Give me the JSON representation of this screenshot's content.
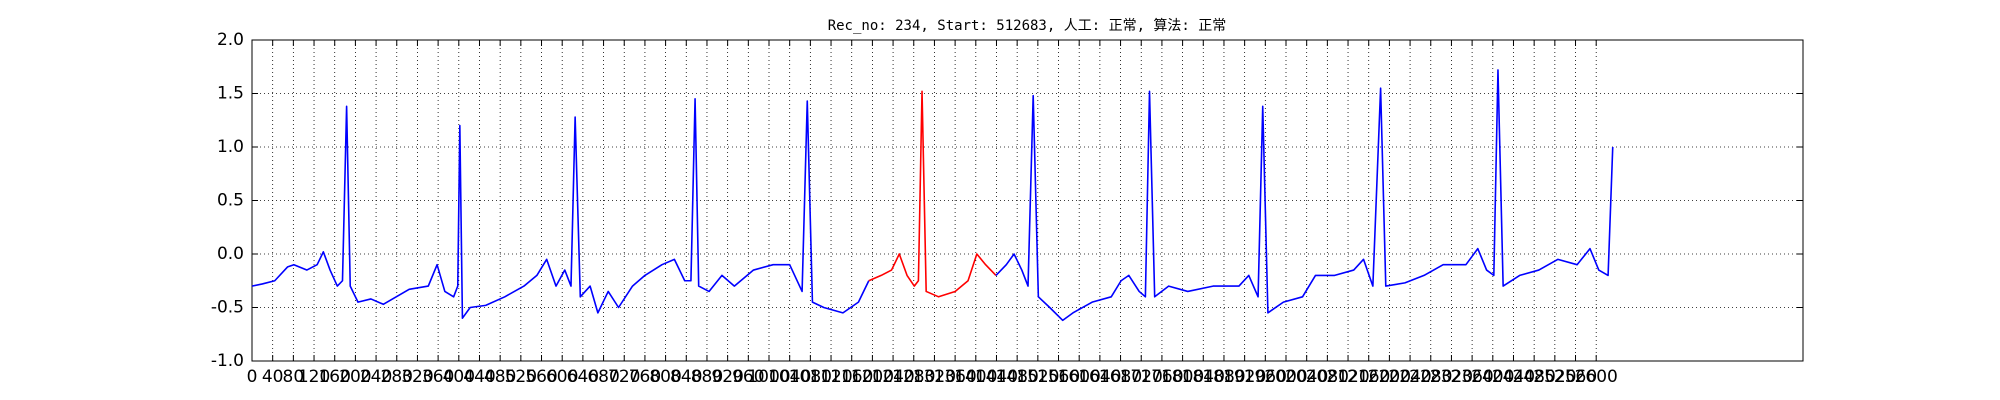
{
  "chart_data": {
    "type": "line",
    "title": "Rec_no: 234, Start: 512683, 人工: 正常, 算法: 正常",
    "xlim": [
      0,
      3000
    ],
    "xticks": [
      0,
      40,
      80,
      120,
      160,
      200,
      240,
      280,
      320,
      360,
      400,
      440,
      480,
      520,
      560,
      600,
      640,
      680,
      720,
      760,
      800,
      840,
      880,
      920,
      960,
      1000,
      1040,
      1080,
      1120,
      1160,
      1200,
      1240,
      1280,
      1320,
      1360,
      1400,
      1440,
      1480,
      1520,
      1560,
      1600,
      1640,
      1680,
      1720,
      1760,
      1800,
      1840,
      1880,
      1920,
      1960,
      2000,
      2040,
      2080,
      2120,
      2160,
      2200,
      2240,
      2280,
      2320,
      2360,
      2400,
      2440,
      2480,
      2520,
      2560,
      2600
    ],
    "ylim": [
      -1,
      2
    ],
    "yticks": [
      {
        "value": -1,
        "label": "-1.0"
      },
      {
        "value": -0.5,
        "label": "-0.5"
      },
      {
        "value": 0,
        "label": "0.0"
      },
      {
        "value": 0.5,
        "label": "0.5"
      },
      {
        "value": 1,
        "label": "1.0"
      },
      {
        "value": 1.5,
        "label": "1.5"
      },
      {
        "value": 2,
        "label": "2.0"
      }
    ],
    "grid": true,
    "series": [
      {
        "color": "#0000ff",
        "x": [
          0,
          20,
          44,
          69,
          81,
          106,
          126,
          138,
          151,
          165,
          175,
          183,
          190,
          205,
          230,
          254,
          279,
          304,
          341,
          358,
          373,
          390,
          398,
          402,
          407,
          422,
          452,
          489,
          526,
          551,
          570,
          588,
          605,
          617,
          625,
          635,
          654,
          669,
          689,
          709,
          736,
          760,
          793,
          817,
          837,
          849,
          857,
          864,
          884,
          909,
          933,
          970,
          1008,
          1040,
          1064,
          1074,
          1084,
          1106,
          1143,
          1173,
          1193
        ],
        "values": [
          -0.3,
          -0.28,
          -0.25,
          -0.12,
          -0.1,
          -0.15,
          -0.1,
          0.02,
          -0.15,
          -0.3,
          -0.25,
          1.38,
          -0.3,
          -0.45,
          -0.42,
          -0.47,
          -0.4,
          -0.33,
          -0.3,
          -0.1,
          -0.35,
          -0.4,
          -0.3,
          1.2,
          -0.6,
          -0.5,
          -0.48,
          -0.4,
          -0.3,
          -0.2,
          -0.05,
          -0.3,
          -0.15,
          -0.3,
          1.28,
          -0.4,
          -0.3,
          -0.55,
          -0.35,
          -0.5,
          -0.3,
          -0.2,
          -0.1,
          -0.05,
          -0.25,
          -0.25,
          1.45,
          -0.3,
          -0.35,
          -0.2,
          -0.3,
          -0.15,
          -0.1,
          -0.1,
          -0.35,
          1.43,
          -0.45,
          -0.5,
          -0.55,
          -0.45,
          -0.25
        ]
      },
      {
        "color": "#ff0000",
        "x": [
          1193,
          1217,
          1237,
          1252,
          1267,
          1281,
          1289,
          1296,
          1304,
          1328,
          1360,
          1385,
          1402,
          1419,
          1439
        ],
        "values": [
          -0.25,
          -0.2,
          -0.15,
          0,
          -0.2,
          -0.3,
          -0.25,
          1.52,
          -0.35,
          -0.4,
          -0.35,
          -0.25,
          0,
          -0.1,
          -0.2
        ]
      },
      {
        "color": "#0000ff",
        "x": [
          1439,
          1459,
          1474,
          1489,
          1501,
          1511,
          1521,
          1543,
          1568,
          1588,
          1625,
          1662,
          1681,
          1696,
          1716,
          1728,
          1736,
          1746,
          1773,
          1810,
          1859,
          1909,
          1928,
          1946,
          1955,
          1965,
          1995,
          2032,
          2057,
          2094,
          2131,
          2150,
          2168,
          2183,
          2193,
          2230,
          2267,
          2304,
          2348,
          2371,
          2388,
          2402,
          2410,
          2420,
          2452,
          2489,
          2526,
          2563,
          2588,
          2605,
          2623,
          2632
        ],
        "values": [
          -0.2,
          -0.1,
          0,
          -0.15,
          -0.3,
          1.48,
          -0.4,
          -0.5,
          -0.62,
          -0.55,
          -0.45,
          -0.4,
          -0.25,
          -0.2,
          -0.35,
          -0.4,
          1.52,
          -0.4,
          -0.3,
          -0.35,
          -0.3,
          -0.3,
          -0.2,
          -0.4,
          1.38,
          -0.55,
          -0.45,
          -0.4,
          -0.2,
          -0.2,
          -0.15,
          -0.05,
          -0.3,
          1.55,
          -0.3,
          -0.27,
          -0.2,
          -0.1,
          -0.1,
          0.05,
          -0.15,
          -0.2,
          1.72,
          -0.3,
          -0.2,
          -0.15,
          -0.05,
          -0.1,
          0.05,
          -0.15,
          -0.2,
          1
        ]
      }
    ]
  }
}
